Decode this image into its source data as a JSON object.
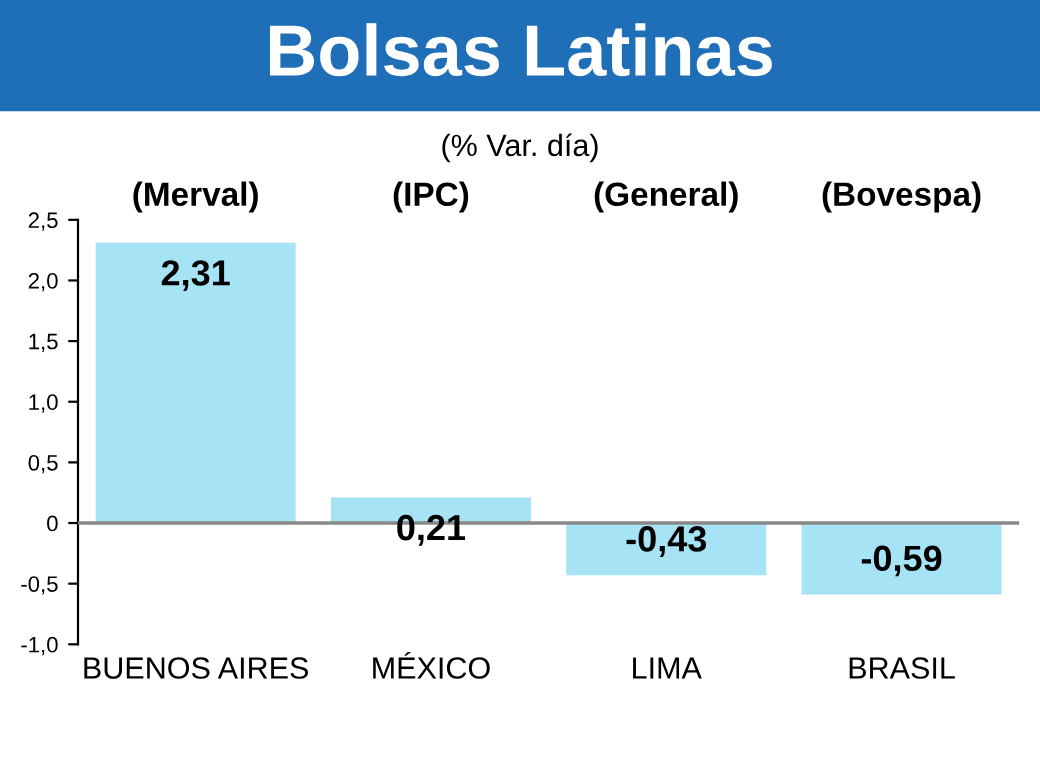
{
  "chart_data": {
    "type": "bar",
    "title": "Bolsas Latinas",
    "subtitle": "(% Var. día)",
    "annotations": [
      "(Merval)",
      "(IPC)",
      "(General)",
      "(Bovespa)"
    ],
    "categories": [
      "BUENOS AIRES",
      "MÉXICO",
      "LIMA",
      "BRASIL"
    ],
    "values": [
      2.31,
      0.21,
      -0.43,
      -0.59
    ],
    "value_labels": [
      "2,31",
      "0,21",
      "-0,43",
      "-0,59"
    ],
    "color": "#a6e3f5",
    "ylim": [
      -1.0,
      2.5
    ],
    "yticks": [
      {
        "value": -1.0,
        "label": "-1,0"
      },
      {
        "value": -0.5,
        "label": "-0,5"
      },
      0,
      {
        "value": 0.5,
        "label": "0,5"
      },
      {
        "value": 1.0,
        "label": "1,0"
      },
      {
        "value": 1.5,
        "label": "1,5"
      },
      {
        "value": 2.0,
        "label": "2,0"
      },
      {
        "value": 2.5,
        "label": "2,5"
      }
    ],
    "ref_lines": [
      {
        "axis": "y",
        "value": 0,
        "color": "#888888"
      }
    ]
  }
}
